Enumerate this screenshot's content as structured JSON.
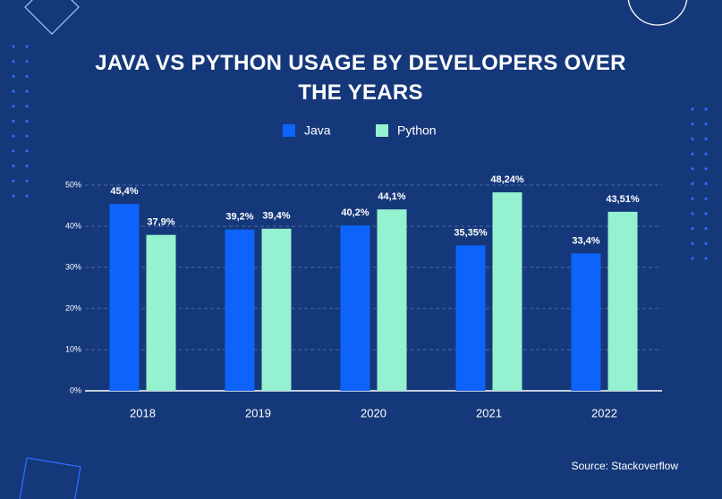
{
  "chart_data": {
    "type": "bar",
    "title": "JAVA VS PYTHON USAGE BY DEVELOPERS OVER THE YEARS",
    "categories": [
      "2018",
      "2019",
      "2020",
      "2021",
      "2022"
    ],
    "series": [
      {
        "name": "Java",
        "color": "#0d63fb",
        "values": [
          45.4,
          39.2,
          40.2,
          35.35,
          33.4
        ],
        "value_labels": [
          "45,4%",
          "39,2%",
          "40,2%",
          "35,35%",
          "33,4%"
        ]
      },
      {
        "name": "Python",
        "color": "#95f2d0",
        "values": [
          37.9,
          39.4,
          44.1,
          48.24,
          43.51
        ],
        "value_labels": [
          "37,9%",
          "39,4%",
          "44,1%",
          "48,24%",
          "43,51%"
        ]
      }
    ],
    "ylim": [
      0,
      50
    ],
    "yticks": [
      {
        "value": 0,
        "label": "0%"
      },
      {
        "value": 10,
        "label": "10%"
      },
      {
        "value": 20,
        "label": "20%"
      },
      {
        "value": 30,
        "label": "30%"
      },
      {
        "value": 40,
        "label": "40%"
      },
      {
        "value": 50,
        "label": "50%"
      }
    ],
    "grid": true,
    "legend": "top",
    "source": "Source: Stackoverflow"
  }
}
